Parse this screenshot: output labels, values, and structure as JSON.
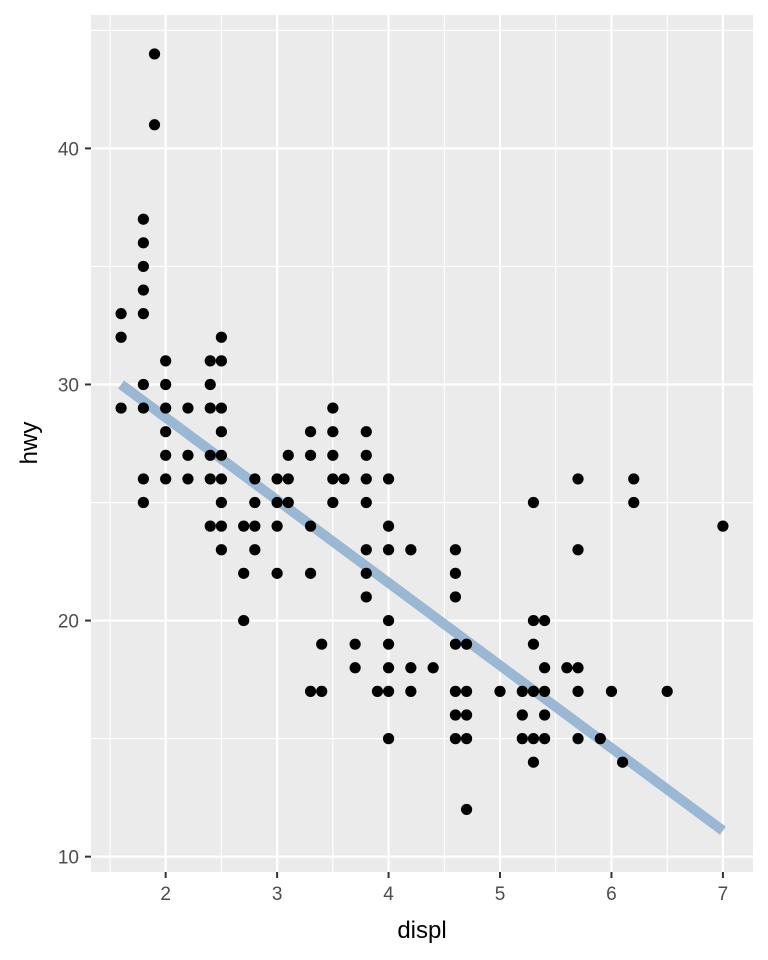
{
  "chart_data": {
    "type": "scatter",
    "title": "",
    "xlabel": "displ",
    "ylabel": "hwy",
    "xlim": [
      1.33,
      7.27
    ],
    "ylim": [
      9.35,
      45.65
    ],
    "x_ticks": [
      2,
      3,
      4,
      5,
      6,
      7
    ],
    "y_ticks": [
      10,
      20,
      30,
      40
    ],
    "x_tick_labels": [
      "2",
      "3",
      "4",
      "5",
      "6",
      "7"
    ],
    "y_tick_labels": [
      "10",
      "20",
      "30",
      "40"
    ],
    "grid": true,
    "legend": "none",
    "colors": {
      "panel": "#ebebeb",
      "grid": "#ffffff",
      "points": "#000000",
      "fit_line": "#9ab7d4",
      "tick_mark": "#333333"
    },
    "points": [
      [
        1.6,
        33
      ],
      [
        1.6,
        32
      ],
      [
        1.6,
        29
      ],
      [
        1.8,
        37
      ],
      [
        1.8,
        36
      ],
      [
        1.8,
        35
      ],
      [
        1.8,
        34
      ],
      [
        1.8,
        33
      ],
      [
        1.8,
        30
      ],
      [
        1.8,
        29
      ],
      [
        1.8,
        26
      ],
      [
        1.8,
        25
      ],
      [
        1.9,
        44
      ],
      [
        1.9,
        41
      ],
      [
        2.0,
        31
      ],
      [
        2.0,
        30
      ],
      [
        2.0,
        29
      ],
      [
        2.0,
        28
      ],
      [
        2.0,
        27
      ],
      [
        2.0,
        26
      ],
      [
        2.2,
        29
      ],
      [
        2.2,
        27
      ],
      [
        2.2,
        26
      ],
      [
        2.4,
        31
      ],
      [
        2.4,
        30
      ],
      [
        2.4,
        29
      ],
      [
        2.4,
        27
      ],
      [
        2.4,
        26
      ],
      [
        2.4,
        24
      ],
      [
        2.5,
        32
      ],
      [
        2.5,
        31
      ],
      [
        2.5,
        29
      ],
      [
        2.5,
        28
      ],
      [
        2.5,
        27
      ],
      [
        2.5,
        26
      ],
      [
        2.5,
        25
      ],
      [
        2.5,
        24
      ],
      [
        2.5,
        23
      ],
      [
        2.7,
        24
      ],
      [
        2.7,
        22
      ],
      [
        2.7,
        20
      ],
      [
        2.8,
        26
      ],
      [
        2.8,
        25
      ],
      [
        2.8,
        24
      ],
      [
        2.8,
        23
      ],
      [
        3.0,
        26
      ],
      [
        3.0,
        25
      ],
      [
        3.0,
        24
      ],
      [
        3.0,
        22
      ],
      [
        3.1,
        27
      ],
      [
        3.1,
        26
      ],
      [
        3.1,
        25
      ],
      [
        3.3,
        28
      ],
      [
        3.3,
        27
      ],
      [
        3.3,
        24
      ],
      [
        3.3,
        22
      ],
      [
        3.3,
        17
      ],
      [
        3.4,
        19
      ],
      [
        3.4,
        17
      ],
      [
        3.5,
        29
      ],
      [
        3.5,
        28
      ],
      [
        3.5,
        27
      ],
      [
        3.5,
        26
      ],
      [
        3.5,
        25
      ],
      [
        3.6,
        26
      ],
      [
        3.7,
        19
      ],
      [
        3.7,
        18
      ],
      [
        3.8,
        28
      ],
      [
        3.8,
        27
      ],
      [
        3.8,
        26
      ],
      [
        3.8,
        25
      ],
      [
        3.8,
        23
      ],
      [
        3.8,
        22
      ],
      [
        3.8,
        21
      ],
      [
        3.9,
        17
      ],
      [
        4.0,
        26
      ],
      [
        4.0,
        24
      ],
      [
        4.0,
        23
      ],
      [
        4.0,
        20
      ],
      [
        4.0,
        19
      ],
      [
        4.0,
        18
      ],
      [
        4.0,
        17
      ],
      [
        4.0,
        15
      ],
      [
        4.2,
        23
      ],
      [
        4.2,
        18
      ],
      [
        4.2,
        17
      ],
      [
        4.4,
        18
      ],
      [
        4.6,
        23
      ],
      [
        4.6,
        22
      ],
      [
        4.6,
        21
      ],
      [
        4.6,
        19
      ],
      [
        4.6,
        17
      ],
      [
        4.6,
        16
      ],
      [
        4.6,
        15
      ],
      [
        4.7,
        19
      ],
      [
        4.7,
        17
      ],
      [
        4.7,
        16
      ],
      [
        4.7,
        15
      ],
      [
        4.7,
        12
      ],
      [
        5.0,
        17
      ],
      [
        5.2,
        17
      ],
      [
        5.2,
        16
      ],
      [
        5.2,
        15
      ],
      [
        5.3,
        25
      ],
      [
        5.3,
        20
      ],
      [
        5.3,
        19
      ],
      [
        5.3,
        17
      ],
      [
        5.3,
        15
      ],
      [
        5.3,
        14
      ],
      [
        5.4,
        20
      ],
      [
        5.4,
        18
      ],
      [
        5.4,
        17
      ],
      [
        5.4,
        16
      ],
      [
        5.4,
        15
      ],
      [
        5.6,
        18
      ],
      [
        5.7,
        26
      ],
      [
        5.7,
        23
      ],
      [
        5.7,
        18
      ],
      [
        5.7,
        17
      ],
      [
        5.7,
        15
      ],
      [
        5.9,
        15
      ],
      [
        6.0,
        17
      ],
      [
        6.1,
        14
      ],
      [
        6.2,
        26
      ],
      [
        6.2,
        25
      ],
      [
        6.5,
        17
      ],
      [
        7.0,
        24
      ]
    ],
    "fit_line": {
      "x": [
        1.6,
        7.0
      ],
      "y": [
        30.0,
        11.1
      ]
    }
  }
}
